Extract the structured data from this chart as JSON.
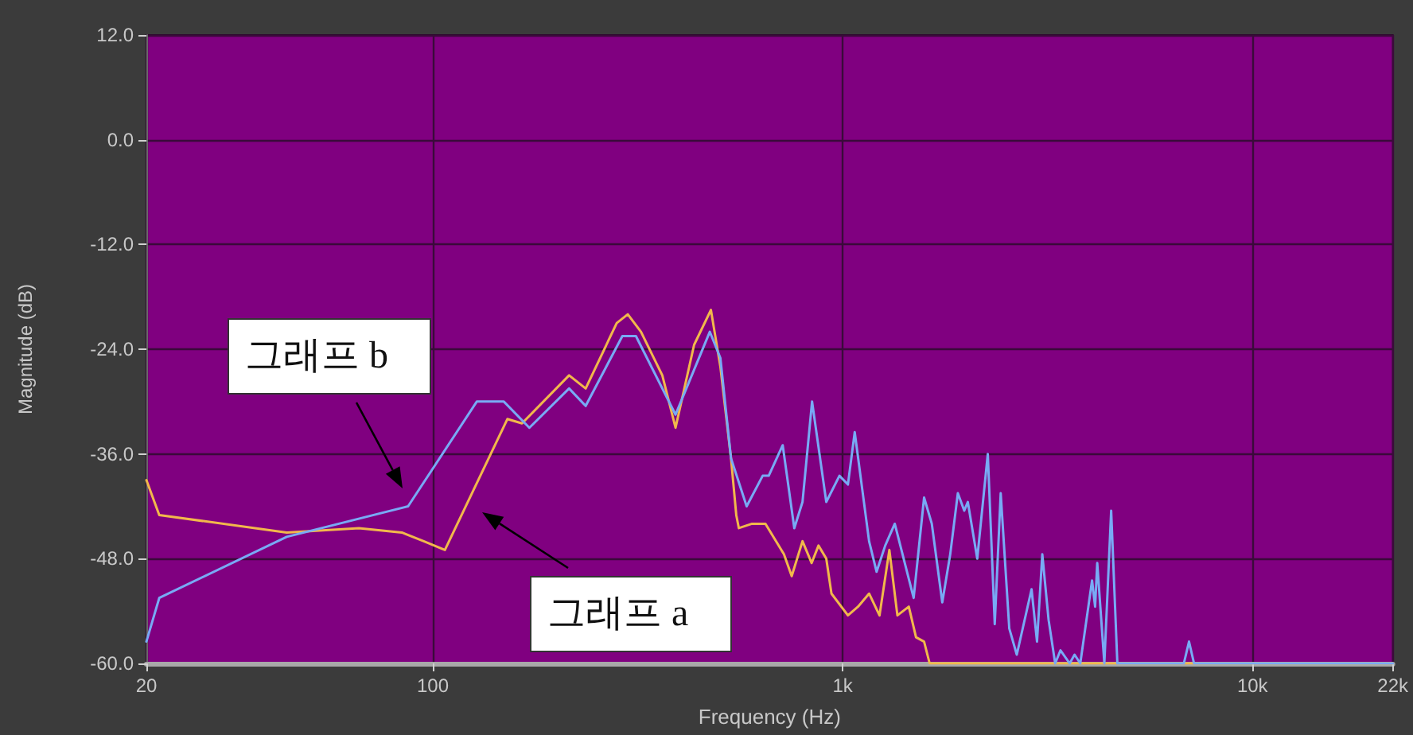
{
  "chart_data": {
    "type": "line",
    "xlabel": "Frequency (Hz)",
    "ylabel": "Magnitude (dB)",
    "log": "x",
    "xlim": [
      20,
      22000
    ],
    "xticks": [
      20,
      100,
      {
        "value": 1000,
        "label": "1k"
      },
      {
        "value": 10000,
        "label": "10k"
      },
      {
        "value": 22000,
        "label": "22k"
      }
    ],
    "ylim": [
      -60,
      12
    ],
    "yticks": [
      {
        "value": 12,
        "label": "12.0"
      },
      {
        "value": 0,
        "label": "0.0"
      },
      {
        "value": -12,
        "label": "-12.0"
      },
      {
        "value": -24,
        "label": "-24.0"
      },
      {
        "value": -36,
        "label": "-36.0"
      },
      {
        "value": -48,
        "label": "-48.0"
      },
      {
        "value": -60,
        "label": "-60.0"
      }
    ],
    "grid": true,
    "series": [
      {
        "name": "그래프 a",
        "color": "#f2b84b",
        "x": [
          20,
          21.5,
          44,
          66,
          84,
          95,
          107,
          152,
          165,
          215,
          236,
          281,
          299,
          322,
          363,
          391,
          434,
          477,
          503,
          534,
          550,
          558,
          601,
          648,
          719,
          751,
          798,
          840,
          873,
          912,
          939,
          1030,
          1090,
          1160,
          1230,
          1300,
          1360,
          1450,
          1510,
          1580,
          1630,
          22000
        ],
        "values": [
          -39,
          -43,
          -45,
          -44.5,
          -45,
          -46,
          -47,
          -32,
          -32.5,
          -27,
          -28.5,
          -21,
          -20,
          -22,
          -27,
          -33,
          -23.5,
          -19.5,
          -26,
          -36.5,
          -43,
          -44.5,
          -44,
          -44,
          -47.5,
          -50,
          -46,
          -48.5,
          -46.5,
          -48,
          -52,
          -54.5,
          -53.5,
          -52,
          -54.5,
          -47,
          -54.5,
          -53.5,
          -57,
          -57.5,
          -60,
          -60
        ]
      },
      {
        "name": "그래프 b",
        "color": "#78aaf5",
        "x": [
          20,
          21.5,
          44,
          87,
          128,
          149,
          172,
          215,
          236,
          290,
          313,
          391,
          474,
          503,
          534,
          583,
          638,
          660,
          714,
          762,
          798,
          842,
          912,
          982,
          1030,
          1070,
          1160,
          1210,
          1270,
          1340,
          1400,
          1490,
          1580,
          1650,
          1750,
          1830,
          1910,
          1980,
          2020,
          2130,
          2260,
          2350,
          2430,
          2550,
          2660,
          2890,
          2980,
          3070,
          3180,
          3300,
          3400,
          3580,
          3680,
          3800,
          4060,
          4130,
          4180,
          4350,
          4520,
          4680,
          6800,
          7000,
          7200,
          22000
        ],
        "values": [
          -57.5,
          -52.5,
          -45.5,
          -42,
          -30,
          -30,
          -33,
          -28.5,
          -30.5,
          -22.5,
          -22.5,
          -31.5,
          -22,
          -25,
          -36.5,
          -42,
          -38.5,
          -38.5,
          -35,
          -44.5,
          -41.5,
          -30,
          -41.5,
          -38.5,
          -39.5,
          -33.5,
          -46,
          -49.5,
          -46.5,
          -44,
          -47.5,
          -52.5,
          -41,
          -44,
          -53,
          -47.5,
          -40.5,
          -42.5,
          -41.5,
          -48,
          -36,
          -55.5,
          -40.5,
          -56,
          -59,
          -51.5,
          -57.5,
          -47.5,
          -55,
          -60,
          -58.5,
          -60,
          -59,
          -60,
          -50.5,
          -53.5,
          -48.5,
          -60,
          -42.5,
          -60,
          -60,
          -57.5,
          -60,
          -60
        ]
      }
    ]
  }
}
